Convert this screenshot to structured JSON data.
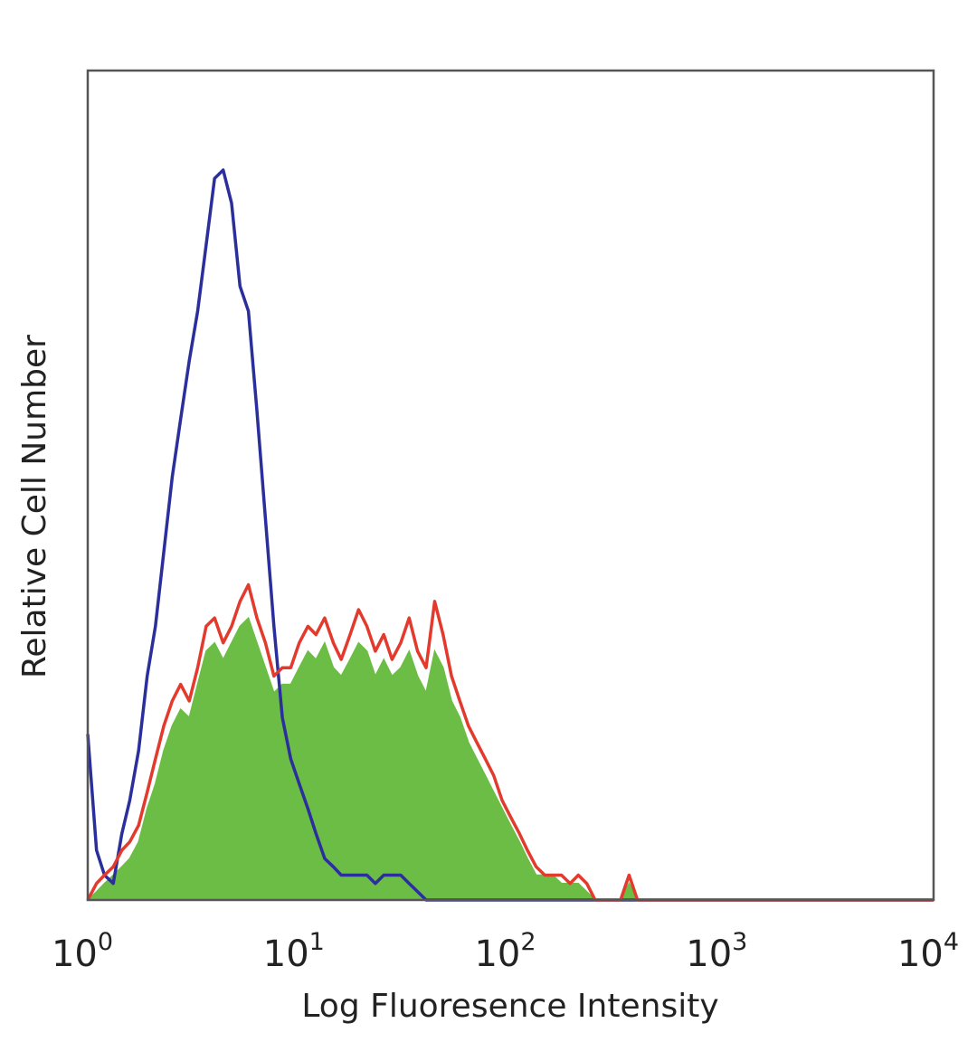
{
  "chart_data": {
    "type": "area",
    "title": "",
    "xlabel": "Log Fluoresence Intensity",
    "ylabel": "Relative Cell Number",
    "x_scale": "log",
    "xlim": [
      1,
      10000
    ],
    "ylim": [
      0,
      100
    ],
    "grid": false,
    "legend": "none",
    "x_ticks": [
      {
        "value": 1,
        "base": "10",
        "exp": "0"
      },
      {
        "value": 10,
        "base": "10",
        "exp": "1"
      },
      {
        "value": 100,
        "base": "10",
        "exp": "2"
      },
      {
        "value": 1000,
        "base": "10",
        "exp": "3"
      },
      {
        "value": 10000,
        "base": "10",
        "exp": "4"
      }
    ],
    "series": [
      {
        "color": "#2b2f9c",
        "style": "outline",
        "x": [
          1.0,
          1.1,
          1.2,
          1.32,
          1.45,
          1.58,
          1.74,
          1.91,
          2.09,
          2.29,
          2.51,
          2.75,
          3.02,
          3.31,
          3.63,
          3.98,
          4.37,
          4.79,
          5.25,
          5.75,
          6.31,
          6.92,
          7.59,
          8.32,
          9.12,
          10.0,
          11.0,
          12.0,
          13.2,
          14.5,
          15.8,
          17.4,
          19.1,
          20.9,
          22.9,
          25.1,
          27.5,
          30.2,
          33.1,
          36.3,
          39.8,
          50.0,
          100.0,
          1000.0,
          10000.0
        ],
        "y": [
          20,
          6,
          3,
          2,
          8,
          12,
          18,
          27,
          33,
          42,
          51,
          58,
          65,
          71,
          79,
          87,
          88,
          84,
          74,
          71,
          59,
          46,
          33,
          22,
          17,
          14,
          11,
          8,
          5,
          4,
          3,
          3,
          3,
          3,
          2,
          3,
          3,
          3,
          2,
          1,
          0,
          0,
          0,
          0,
          0
        ]
      },
      {
        "color": "#e23b2e",
        "style": "outline",
        "x": [
          1.0,
          1.1,
          1.2,
          1.32,
          1.45,
          1.58,
          1.74,
          1.91,
          2.09,
          2.29,
          2.51,
          2.75,
          3.02,
          3.31,
          3.63,
          3.98,
          4.37,
          4.79,
          5.25,
          5.75,
          6.31,
          6.92,
          7.59,
          8.32,
          9.12,
          10.0,
          11.0,
          12.0,
          13.2,
          14.5,
          15.8,
          17.4,
          19.1,
          20.9,
          22.9,
          25.1,
          27.5,
          30.2,
          33.1,
          36.3,
          39.8,
          43.7,
          47.9,
          52.5,
          57.5,
          63.1,
          69.2,
          75.9,
          83.2,
          91.2,
          100.0,
          110.0,
          120.0,
          132.0,
          145.0,
          158.0,
          174.0,
          191.0,
          209.0,
          229.0,
          251.0,
          300.0,
          331.0,
          363.0,
          398.0,
          500.0,
          1000.0,
          10000.0
        ],
        "y": [
          0,
          2,
          3,
          4,
          6,
          7,
          9,
          13,
          17,
          21,
          24,
          26,
          24,
          28,
          33,
          34,
          31,
          33,
          36,
          38,
          34,
          31,
          27,
          28,
          28,
          31,
          33,
          32,
          34,
          31,
          29,
          32,
          35,
          33,
          30,
          32,
          29,
          31,
          34,
          30,
          28,
          36,
          32,
          27,
          24,
          21,
          19,
          17,
          15,
          12,
          10,
          8,
          6,
          4,
          3,
          3,
          3,
          2,
          3,
          2,
          0,
          0,
          0,
          3,
          0,
          0,
          0,
          0
        ]
      },
      {
        "color": "#6cbd45",
        "style": "filled",
        "x": [
          1.0,
          1.1,
          1.2,
          1.32,
          1.45,
          1.58,
          1.74,
          1.91,
          2.09,
          2.29,
          2.51,
          2.75,
          3.02,
          3.31,
          3.63,
          3.98,
          4.37,
          4.79,
          5.25,
          5.75,
          6.31,
          6.92,
          7.59,
          8.32,
          9.12,
          10.0,
          11.0,
          12.0,
          13.2,
          14.5,
          15.8,
          17.4,
          19.1,
          20.9,
          22.9,
          25.1,
          27.5,
          30.2,
          33.1,
          36.3,
          39.8,
          43.7,
          47.9,
          52.5,
          57.5,
          63.1,
          69.2,
          75.9,
          83.2,
          91.2,
          100.0,
          110.0,
          120.0,
          132.0,
          145.0,
          158.0,
          174.0,
          191.0,
          209.0,
          229.0,
          251.0,
          300.0,
          331.0,
          363.0,
          398.0,
          500.0,
          1000.0,
          10000.0
        ],
        "y": [
          0,
          1,
          2,
          3,
          4,
          5,
          7,
          11,
          14,
          18,
          21,
          23,
          22,
          26,
          30,
          31,
          29,
          31,
          33,
          34,
          31,
          28,
          25,
          26,
          26,
          28,
          30,
          29,
          31,
          28,
          27,
          29,
          31,
          30,
          27,
          29,
          27,
          28,
          30,
          27,
          25,
          30,
          28,
          24,
          22,
          19,
          17,
          15,
          13,
          11,
          9,
          7,
          5,
          3,
          3,
          3,
          2,
          2,
          2,
          1,
          0,
          0,
          0,
          2,
          0,
          0,
          0,
          0
        ]
      }
    ]
  }
}
